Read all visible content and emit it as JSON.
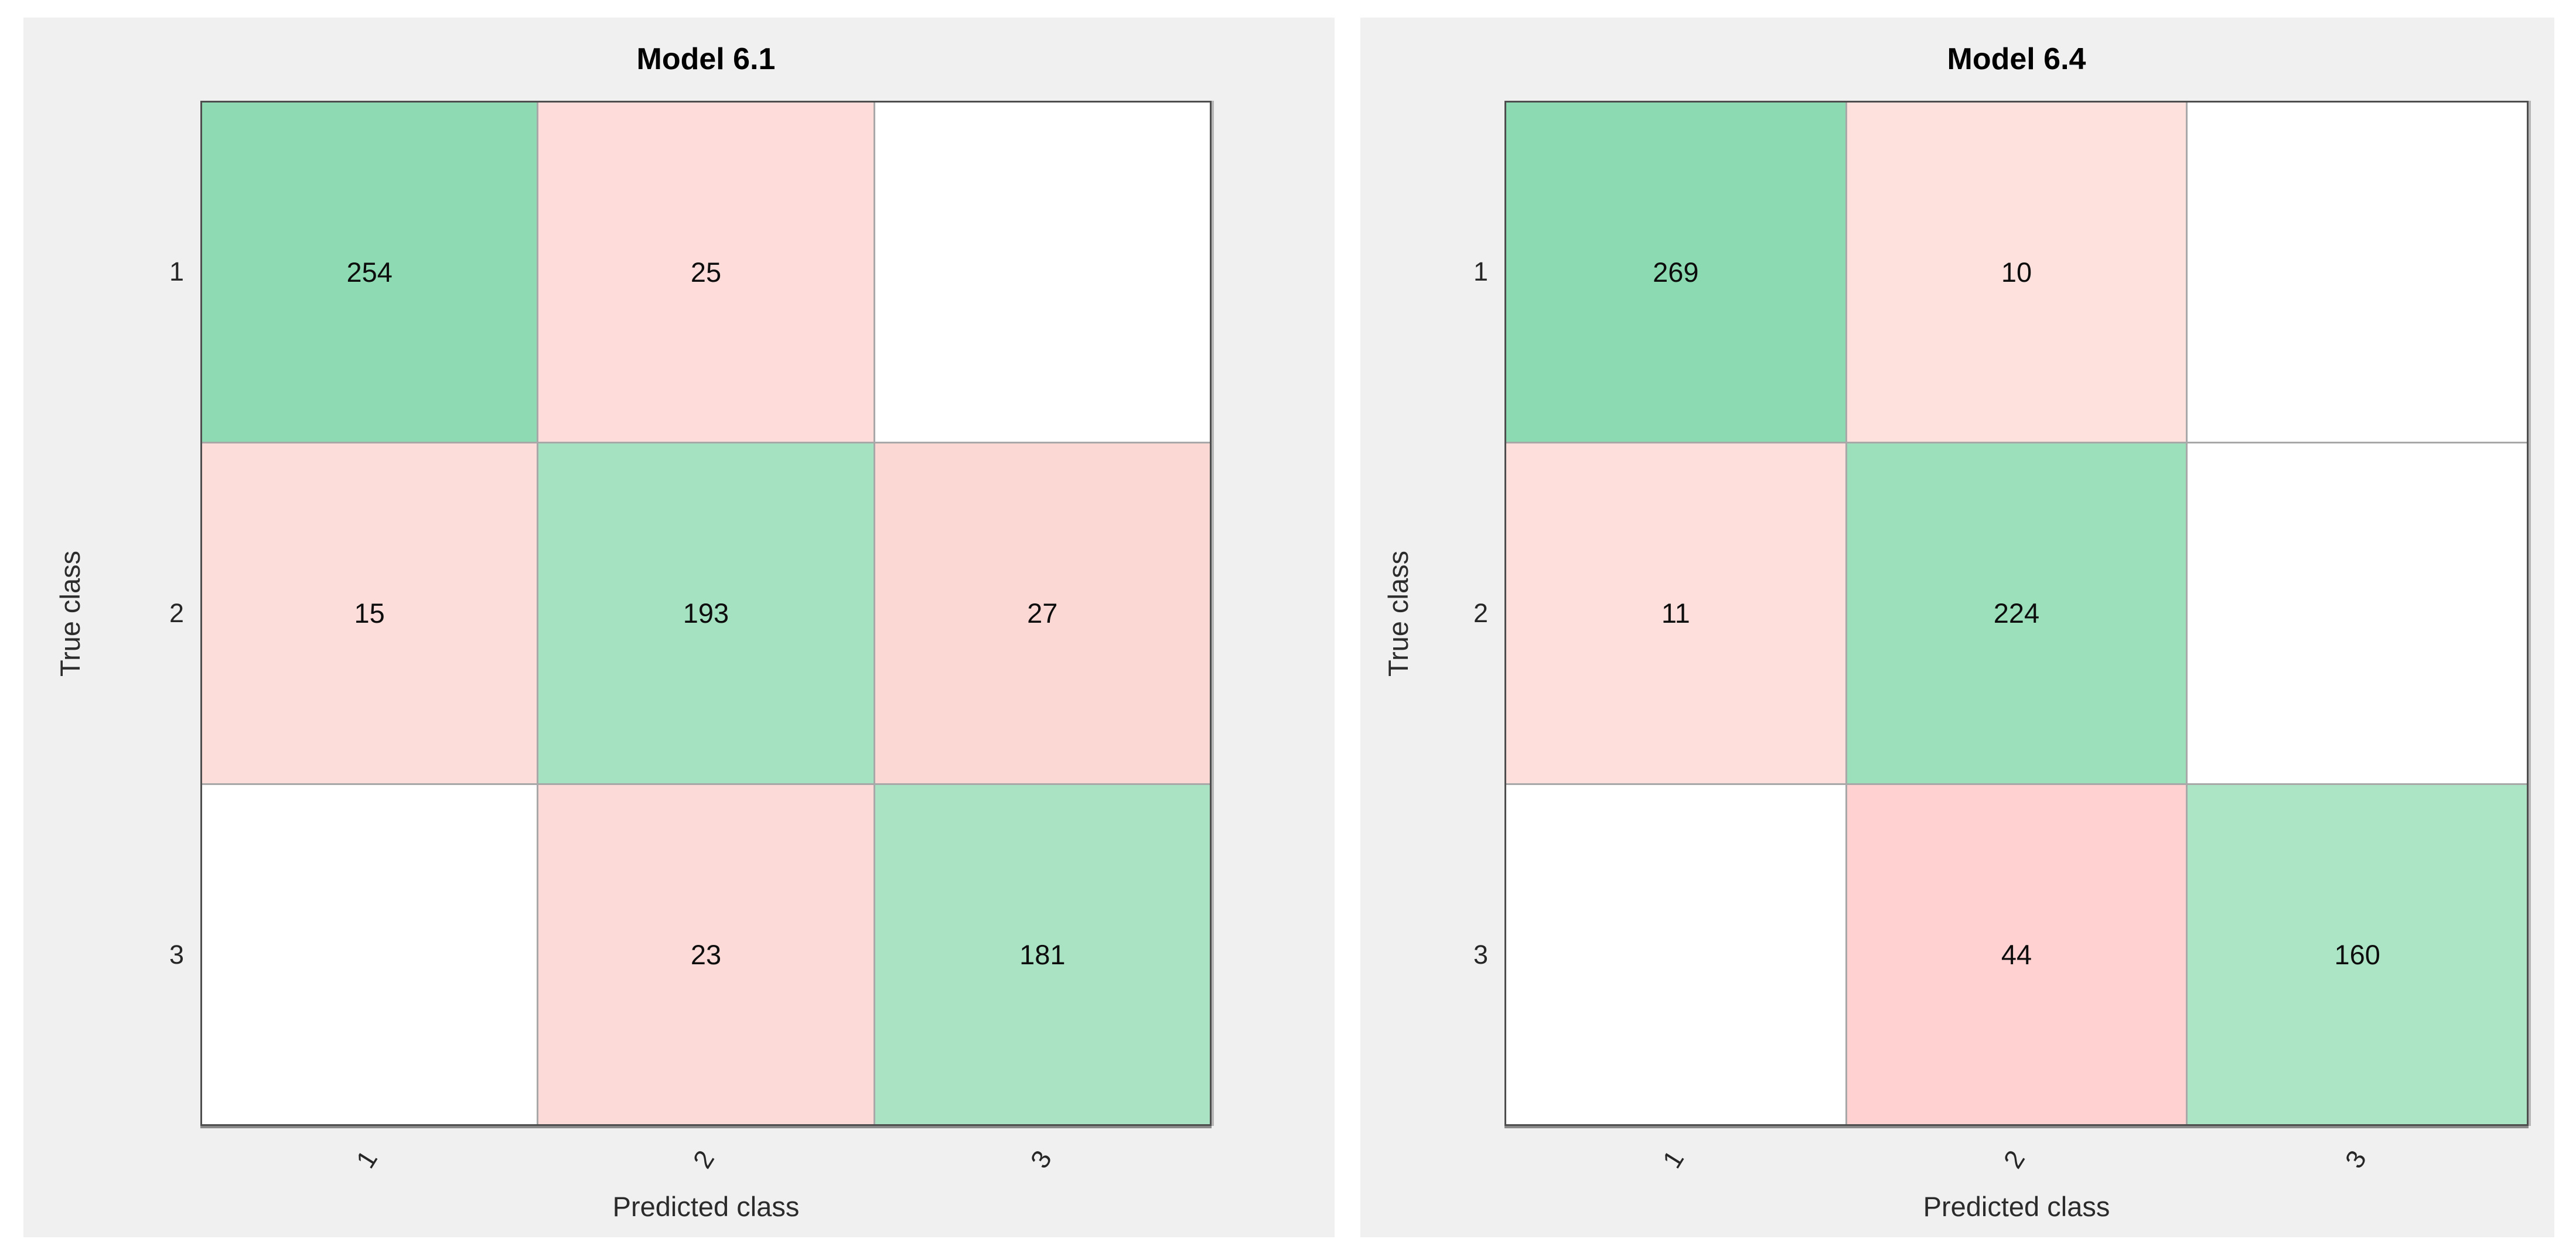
{
  "page": {
    "background": "#ffffff",
    "panel_background": "#f0f0f0",
    "grid_line_color": "#a8a8a8",
    "box_border_color": "#4e4e4e"
  },
  "charts": [
    {
      "title": "Model 6.1",
      "xlabel": "Predicted class",
      "ylabel": "True class",
      "xticks": [
        "1",
        "2",
        "3"
      ],
      "yticks": [
        "1",
        "2",
        "3"
      ],
      "cells": [
        [
          {
            "value": "254",
            "color": "#8edbb3"
          },
          {
            "value": "25",
            "color": "#fddcd9"
          },
          {
            "value": "",
            "color": "#ffffff"
          }
        ],
        [
          {
            "value": "15",
            "color": "#fdddda"
          },
          {
            "value": "193",
            "color": "#a5e2c1"
          },
          {
            "value": "27",
            "color": "#fcd8d5"
          }
        ],
        [
          {
            "value": "",
            "color": "#ffffff"
          },
          {
            "value": "23",
            "color": "#fcdad7"
          },
          {
            "value": "181",
            "color": "#a9e3c4"
          }
        ]
      ]
    },
    {
      "title": "Model 6.4",
      "xlabel": "Predicted class",
      "ylabel": "True class",
      "xticks": [
        "1",
        "2",
        "3"
      ],
      "yticks": [
        "1",
        "2",
        "3"
      ],
      "cells": [
        [
          {
            "value": "269",
            "color": "#8bdab1"
          },
          {
            "value": "10",
            "color": "#fee0dd"
          },
          {
            "value": "",
            "color": "#ffffff"
          }
        ],
        [
          {
            "value": "11",
            "color": "#fedfdc"
          },
          {
            "value": "224",
            "color": "#9bdfbb"
          },
          {
            "value": "",
            "color": "#ffffff"
          }
        ],
        [
          {
            "value": "",
            "color": "#ffffff"
          },
          {
            "value": "44",
            "color": "#ffd2d1"
          },
          {
            "value": "160",
            "color": "#abe5c6"
          }
        ]
      ]
    }
  ],
  "chart_data": [
    {
      "type": "heatmap",
      "title": "Model 6.1",
      "xlabel": "Predicted class",
      "ylabel": "True class",
      "x_categories": [
        "1",
        "2",
        "3"
      ],
      "y_categories": [
        "1",
        "2",
        "3"
      ],
      "values": [
        [
          254,
          25,
          null
        ],
        [
          15,
          193,
          27
        ],
        [
          null,
          23,
          181
        ]
      ],
      "legend": "none",
      "grid": true,
      "notes": "Confusion matrix: diagonal cells green (shade scales with count), off-diagonal cells pink, empty/zero cells white"
    },
    {
      "type": "heatmap",
      "title": "Model 6.4",
      "xlabel": "Predicted class",
      "ylabel": "True class",
      "x_categories": [
        "1",
        "2",
        "3"
      ],
      "y_categories": [
        "1",
        "2",
        "3"
      ],
      "values": [
        [
          269,
          10,
          null
        ],
        [
          11,
          224,
          null
        ],
        [
          null,
          44,
          160
        ]
      ],
      "legend": "none",
      "grid": true,
      "notes": "Confusion matrix: diagonal cells green (shade scales with count), off-diagonal cells pink, empty/zero cells white"
    }
  ]
}
